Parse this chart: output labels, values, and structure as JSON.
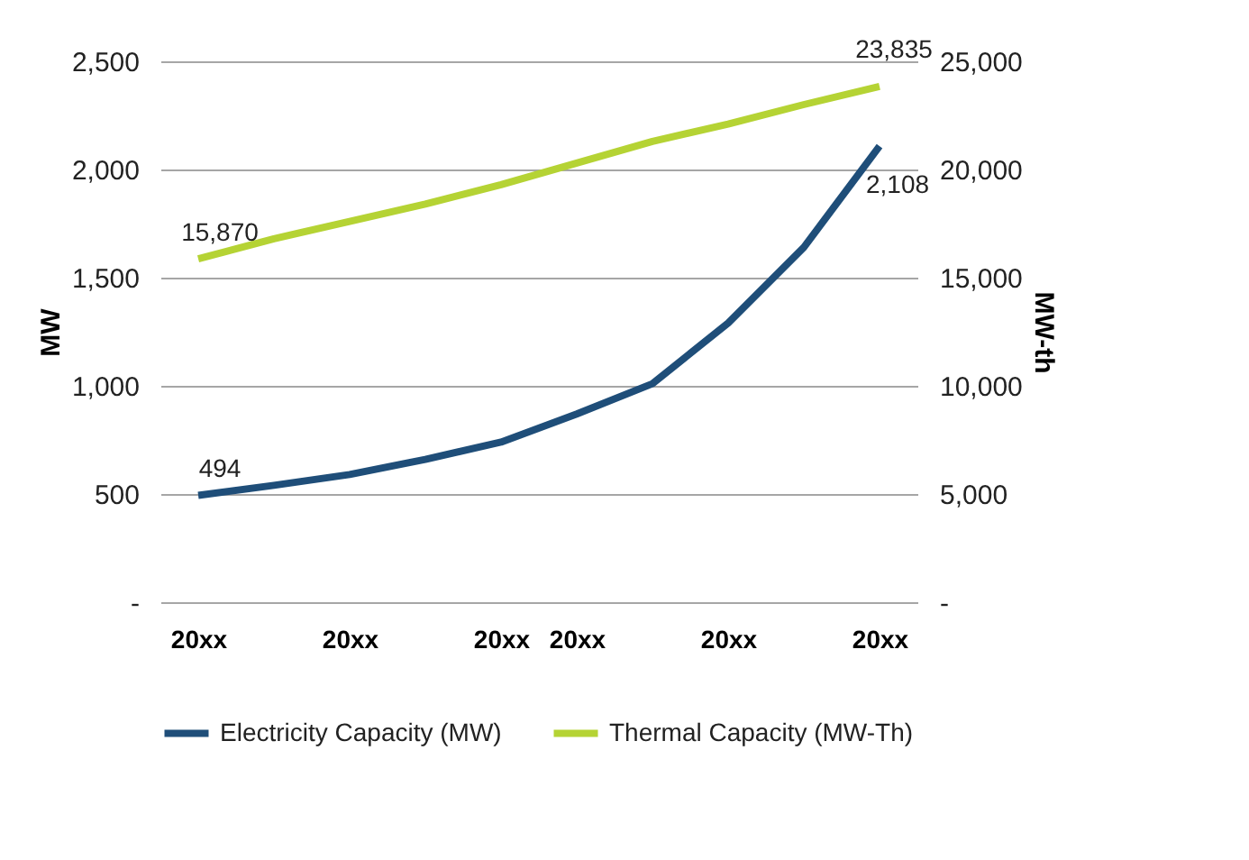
{
  "chart_data": {
    "type": "line",
    "categories": [
      "20xx",
      null,
      "20xx",
      null,
      "20xx",
      "20xx",
      null,
      "20xx",
      null,
      "20xx"
    ],
    "ylabel": "MW",
    "y2label": "MW-th",
    "ylim": [
      0,
      2500
    ],
    "yticks": [
      {
        "value": 0,
        "label": "-"
      },
      500,
      {
        "value": 1000,
        "label": "1,000"
      },
      {
        "value": 1500,
        "label": "1,500"
      },
      {
        "value": 2000,
        "label": "2,000"
      },
      {
        "value": 2500,
        "label": "2,500"
      }
    ],
    "y2lim": [
      0,
      25000
    ],
    "y2ticks": [
      {
        "value": 0,
        "label": "-"
      },
      {
        "value": 5000,
        "label": "5,000"
      },
      {
        "value": 10000,
        "label": "10,000"
      },
      {
        "value": 15000,
        "label": "15,000"
      },
      {
        "value": 20000,
        "label": "20,000"
      },
      {
        "value": 25000,
        "label": "25,000"
      }
    ],
    "series": [
      {
        "name": "Electricity Capacity (MW)",
        "color": "#1f4e79",
        "values": [
          494,
          540,
          590,
          660,
          740,
          870,
          1010,
          1290,
          1640,
          2108
        ],
        "value_labels": [
          "494",
          null,
          null,
          null,
          null,
          null,
          null,
          null,
          null,
          "2,108"
        ]
      },
      {
        "name": "Thermal Capacity (MW-Th)",
        "color": "#b5d334",
        "axis": "y2",
        "values": [
          15870,
          16800,
          17600,
          18400,
          19300,
          20300,
          21300,
          22100,
          23000,
          23835
        ],
        "value_labels": [
          "15,870",
          null,
          null,
          null,
          null,
          null,
          null,
          null,
          null,
          "23,835"
        ]
      }
    ],
    "grid": "y",
    "legend": "bottom",
    "marker": "none",
    "line_style": "solid"
  }
}
